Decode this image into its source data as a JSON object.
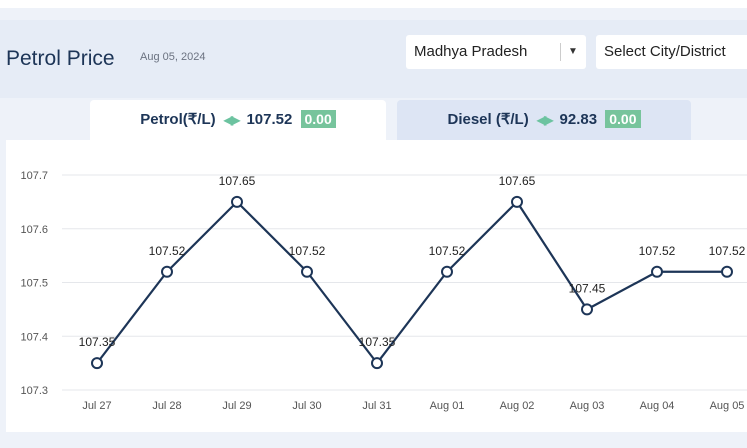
{
  "header": {
    "title": "Petrol Price",
    "date": "Aug 05, 2024",
    "state_select": "Madhya Pradesh",
    "city_select": "Select City/District"
  },
  "tabs": {
    "petrol": {
      "label": "Petrol(₹/L)",
      "price": "107.52",
      "change": "0.00"
    },
    "diesel": {
      "label": "Diesel (₹/L)",
      "price": "92.83",
      "change": "0.00"
    }
  },
  "colors": {
    "line": "#1d3557",
    "change_badge": "#77c49c",
    "arrows": "#6cc3a0"
  },
  "chart_data": {
    "type": "line",
    "x": [
      "Jul 27",
      "Jul 28",
      "Jul 29",
      "Jul 30",
      "Jul 31",
      "Aug 01",
      "Aug 02",
      "Aug 03",
      "Aug 04",
      "Aug 05"
    ],
    "values": [
      107.35,
      107.52,
      107.65,
      107.52,
      107.35,
      107.52,
      107.65,
      107.45,
      107.52,
      107.52
    ],
    "data_labels": [
      "107.35",
      "107.52",
      "107.65",
      "107.52",
      "107.35",
      "107.52",
      "107.65",
      "107.45",
      "107.52",
      "107.52"
    ],
    "yticks": [
      "107.3",
      "107.4",
      "107.5",
      "107.6",
      "107.7"
    ],
    "ylim": [
      107.3,
      107.7
    ],
    "grid": true
  }
}
